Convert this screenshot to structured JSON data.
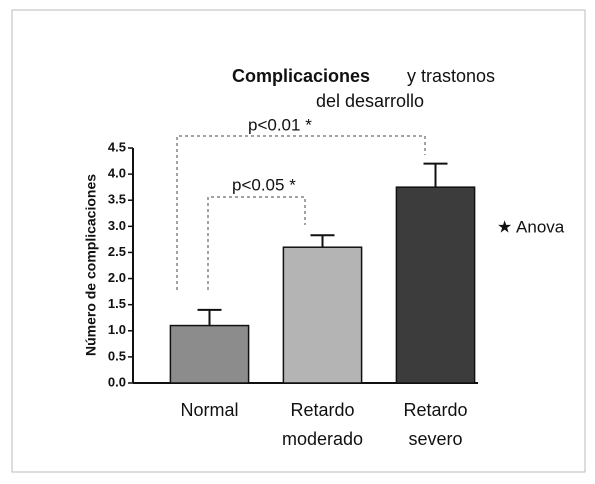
{
  "chart_data": {
    "type": "bar",
    "title": "Complicaciones",
    "subtitle": [
      "y trastonos",
      "del desarrollo"
    ],
    "y_label": "Número de complicaciones",
    "categories": [
      [
        "Normal"
      ],
      [
        "Retardo",
        "moderado"
      ],
      [
        "Retardo",
        "severo"
      ]
    ],
    "values": [
      1.1,
      2.6,
      3.75
    ],
    "errors": [
      0.3,
      0.23,
      0.45
    ],
    "colors": [
      "#8c8c8c",
      "#b4b4b4",
      "#3c3c3c"
    ],
    "ylim": [
      0,
      4.5
    ],
    "yticks": [
      {
        "value": 0,
        "label": "0.0"
      },
      0.5,
      {
        "value": 1,
        "label": "1.0"
      },
      1.5,
      {
        "value": 2,
        "label": "2.0"
      },
      2.5,
      {
        "value": 3,
        "label": "3.0"
      },
      3.5,
      {
        "value": 4,
        "label": "4.0"
      },
      4.5
    ],
    "annotations": [
      "p<0.01 *",
      "p<0.05 *",
      "★ Anova"
    ],
    "grid": false
  }
}
